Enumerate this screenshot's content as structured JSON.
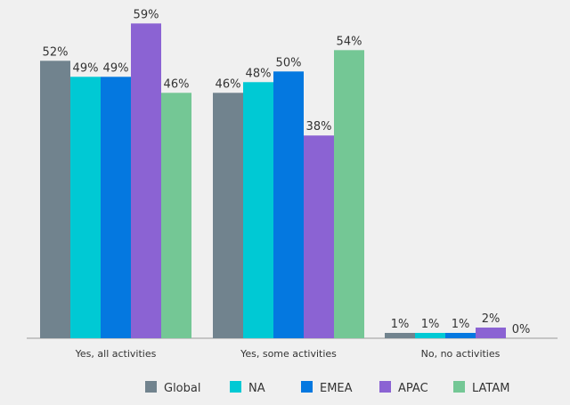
{
  "chart_data": {
    "type": "bar",
    "title": "",
    "xlabel": "",
    "ylabel": "",
    "ylim": [
      0,
      60
    ],
    "grid": false,
    "legend_position": "bottom",
    "categories": [
      "Yes, all activities",
      "Yes, some activities",
      "No, no activities"
    ],
    "series": [
      {
        "name": "Global",
        "color": "#71838e",
        "values": [
          52,
          46,
          1
        ],
        "labels": [
          "52%",
          "46%",
          "1%"
        ]
      },
      {
        "name": "NA",
        "color": "#00c9d4",
        "values": [
          49,
          48,
          1
        ],
        "labels": [
          "49%",
          "48%",
          "1%"
        ]
      },
      {
        "name": "EMEA",
        "color": "#0478e0",
        "values": [
          49,
          50,
          1
        ],
        "labels": [
          "49%",
          "50%",
          "1%"
        ]
      },
      {
        "name": "APAC",
        "color": "#8b63d3",
        "values": [
          59,
          38,
          2
        ],
        "labels": [
          "59%",
          "38%",
          "2%"
        ]
      },
      {
        "name": "LATAM",
        "color": "#74c795",
        "values": [
          46,
          54,
          0
        ],
        "labels": [
          "46%",
          "54%",
          "0%"
        ]
      }
    ]
  }
}
